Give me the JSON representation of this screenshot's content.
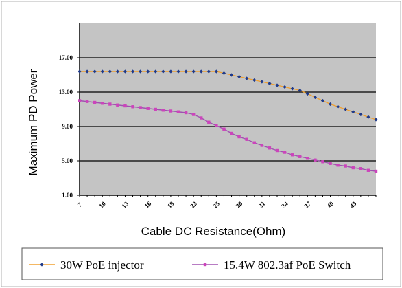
{
  "chart_data": {
    "type": "line",
    "title": "",
    "xlabel": "Cable DC Resistance(Ohm)",
    "ylabel": "Maximum PD Power",
    "x_ticks": [
      "7",
      "10",
      "13",
      "16",
      "19",
      "22",
      "25",
      "28",
      "31",
      "34",
      "37",
      "40",
      "43"
    ],
    "y_ticks": [
      "1.00",
      "5.00",
      "9.00",
      "13.00",
      "17.00"
    ],
    "xlim": [
      7,
      46
    ],
    "ylim": [
      1,
      21
    ],
    "grid": "horizontal",
    "legend_position": "bottom",
    "x": [
      7,
      8,
      9,
      10,
      11,
      12,
      13,
      14,
      15,
      16,
      17,
      18,
      19,
      20,
      21,
      22,
      23,
      24,
      25,
      26,
      27,
      28,
      29,
      30,
      31,
      32,
      33,
      34,
      35,
      36,
      37,
      38,
      39,
      40,
      41,
      42,
      43,
      44,
      45,
      46
    ],
    "series": [
      {
        "name": "30W PoE injector",
        "color": "#1f3a8a",
        "line_color": "#f0a030",
        "marker": "diamond",
        "values": [
          15.4,
          15.4,
          15.4,
          15.4,
          15.4,
          15.4,
          15.4,
          15.4,
          15.4,
          15.4,
          15.4,
          15.4,
          15.4,
          15.4,
          15.4,
          15.4,
          15.4,
          15.4,
          15.4,
          15.2,
          15.0,
          14.8,
          14.6,
          14.4,
          14.2,
          14.0,
          13.8,
          13.6,
          13.4,
          13.2,
          12.8,
          12.4,
          12.0,
          11.6,
          11.3,
          11.0,
          10.7,
          10.4,
          10.1,
          9.8
        ]
      },
      {
        "name": "15.4W 802.3af PoE Switch",
        "color": "#cc44bb",
        "line_color": "#a050b0",
        "marker": "square",
        "values": [
          12.0,
          11.9,
          11.8,
          11.7,
          11.6,
          11.5,
          11.4,
          11.3,
          11.2,
          11.1,
          11.0,
          10.9,
          10.8,
          10.7,
          10.6,
          10.4,
          10.0,
          9.5,
          9.1,
          8.7,
          8.2,
          7.8,
          7.5,
          7.1,
          6.8,
          6.5,
          6.2,
          6.0,
          5.7,
          5.5,
          5.3,
          5.1,
          4.9,
          4.7,
          4.5,
          4.4,
          4.2,
          4.1,
          3.9,
          3.8
        ]
      }
    ]
  }
}
